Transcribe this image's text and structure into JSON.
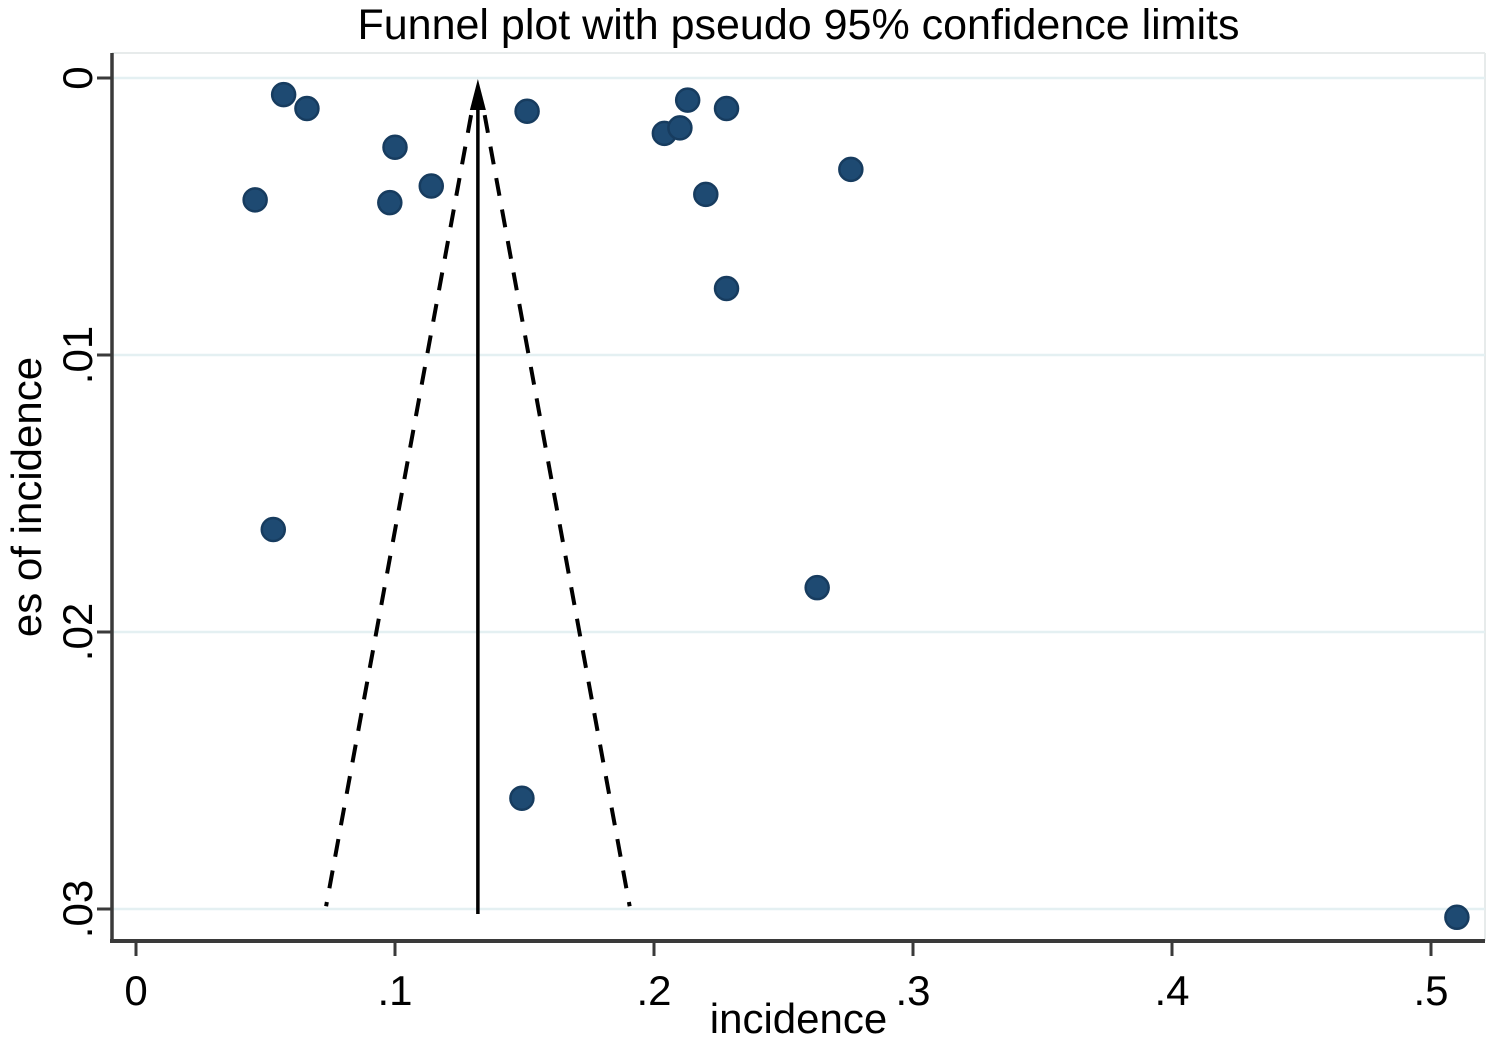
{
  "chart_data": {
    "type": "scatter",
    "subtype": "funnel-plot",
    "title": "Funnel plot with pseudo 95% confidence limits",
    "xlabel": "incidence",
    "ylabel": "es of incidence",
    "legend": "none",
    "grid": "horizontal-only",
    "y_axis_inverted": true,
    "xlim": [
      -0.009,
      0.521
    ],
    "ylim": [
      0,
      0.0312
    ],
    "x_ticks": [
      {
        "value": 0.0,
        "label": "0"
      },
      {
        "value": 0.1,
        "label": ".1"
      },
      {
        "value": 0.2,
        "label": ".2"
      },
      {
        "value": 0.3,
        "label": ".3"
      },
      {
        "value": 0.4,
        "label": ".4"
      },
      {
        "value": 0.5,
        "label": ".5"
      }
    ],
    "y_ticks": [
      {
        "value": 0.0,
        "label": "0"
      },
      {
        "value": 0.01,
        "label": ".01"
      },
      {
        "value": 0.02,
        "label": ".02"
      },
      {
        "value": 0.03,
        "label": ".03"
      }
    ],
    "pooled_estimate": 0.132,
    "pseudo_ci_multiplier": 1.96,
    "funnel_se_max": 0.0299,
    "points": [
      {
        "incidence": 0.057,
        "se": 0.0006
      },
      {
        "incidence": 0.066,
        "se": 0.0011
      },
      {
        "incidence": 0.1,
        "se": 0.0025
      },
      {
        "incidence": 0.046,
        "se": 0.0044
      },
      {
        "incidence": 0.098,
        "se": 0.0045
      },
      {
        "incidence": 0.114,
        "se": 0.0039
      },
      {
        "incidence": 0.151,
        "se": 0.0012
      },
      {
        "incidence": 0.204,
        "se": 0.002
      },
      {
        "incidence": 0.21,
        "se": 0.0018
      },
      {
        "incidence": 0.213,
        "se": 0.0008
      },
      {
        "incidence": 0.228,
        "se": 0.0011
      },
      {
        "incidence": 0.22,
        "se": 0.0042
      },
      {
        "incidence": 0.228,
        "se": 0.0076
      },
      {
        "incidence": 0.276,
        "se": 0.0033
      },
      {
        "incidence": 0.053,
        "se": 0.0163
      },
      {
        "incidence": 0.263,
        "se": 0.0184
      },
      {
        "incidence": 0.149,
        "se": 0.026
      },
      {
        "incidence": 0.51,
        "se": 0.0303
      }
    ],
    "colors": {
      "marker": "#1e4a72",
      "marker_edge": "#173c5f",
      "gridline": "#e4f0f2",
      "axis": "#3a3a3a",
      "plot_border": "#e7ebeb",
      "funnel_lines": "#000000"
    }
  }
}
